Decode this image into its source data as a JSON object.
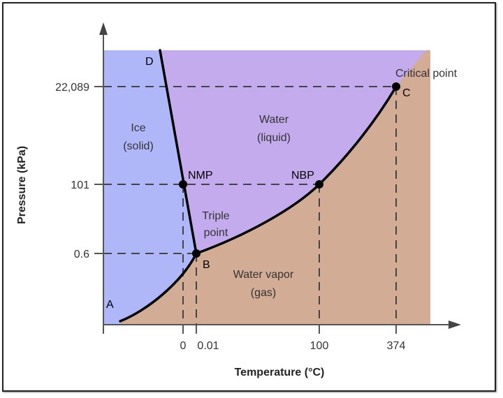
{
  "diagram": {
    "x_axis_label": "Temperature (°C)",
    "y_axis_label": "Pressure (kPa)",
    "x_ticks": [
      "0",
      "0.01",
      "100",
      "374"
    ],
    "y_ticks": [
      "22,089",
      "101",
      "0.6"
    ],
    "regions": {
      "ice": [
        "Ice",
        "(solid)"
      ],
      "liquid": [
        "Water",
        "(liquid)"
      ],
      "vapor": [
        "Water vapor",
        "(gas)"
      ]
    },
    "points": {
      "A": "A",
      "B": "B",
      "C": "C",
      "D": "D",
      "nmp": "NMP",
      "nbp": "NBP",
      "triple_point": [
        "Triple",
        "point"
      ],
      "critical_point": "Critical point"
    },
    "colors": {
      "ice": "#afb7f8",
      "liquid": "#c4abee",
      "vapor": "#d2ac94",
      "curve": "#000000",
      "dashes": "#444444"
    }
  }
}
